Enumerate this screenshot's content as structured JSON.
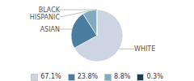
{
  "chart_data": {
    "type": "pie",
    "categories": [
      "WHITE",
      "ASIAN",
      "HISPANIC",
      "BLACK"
    ],
    "values": [
      67.1,
      23.8,
      8.8,
      0.3
    ],
    "value_labels": [
      "67.1%",
      "23.8%",
      "8.8%",
      "0.3%"
    ],
    "colors": [
      "#cdd5e3",
      "#4a7d9f",
      "#7faabf",
      "#1e3a52"
    ],
    "legend": "bottom"
  }
}
